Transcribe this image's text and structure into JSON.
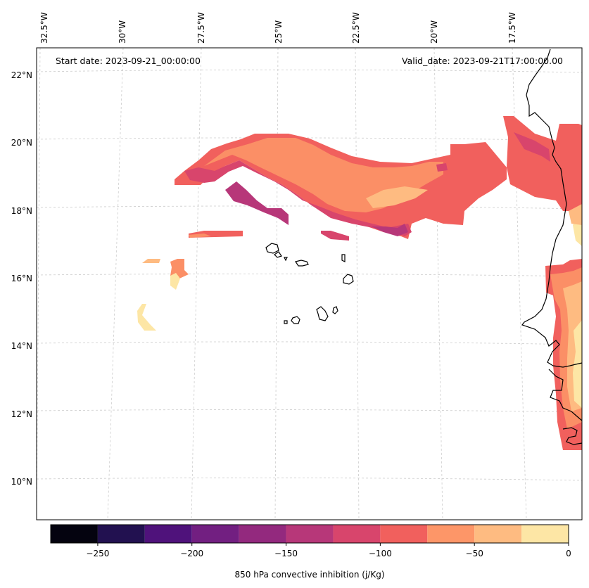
{
  "map": {
    "start_label": "Start date: 2023-09-21_00:00:00",
    "valid_label": "Valid_date: 2023-09-21T17:00:00.00",
    "lon_labels": [
      "32.5°W",
      "30°W",
      "27.5°W",
      "25°W",
      "22.5°W",
      "20°W",
      "17.5°W"
    ],
    "lat_labels": [
      "22°N",
      "20°N",
      "18°N",
      "16°N",
      "14°N",
      "12°N",
      "10°N"
    ]
  },
  "colorbar": {
    "label": "850 hPa convective inhibition (j/Kg)",
    "min": -275,
    "max": 0,
    "levels": [
      -275,
      -250,
      -225,
      -200,
      -175,
      -150,
      -125,
      -100,
      -75,
      -50,
      -25,
      0
    ],
    "tick_labels": [
      "−250",
      "−200",
      "−150",
      "−100",
      "−50",
      "0"
    ],
    "colors": [
      "#04030f",
      "#221150",
      "#4f127b",
      "#721f81",
      "#93297e",
      "#b73779",
      "#d8456c",
      "#f1605d",
      "#fd9668",
      "#febb81",
      "#fde6a5"
    ]
  },
  "colors": {
    "c_m100": "#f1605d",
    "c_m75": "#fb8f66",
    "c_m50": "#febb81",
    "c_m25": "#fde6a5",
    "c_m125": "#d8456c",
    "c_m150": "#b73779",
    "coast": "#000000"
  }
}
